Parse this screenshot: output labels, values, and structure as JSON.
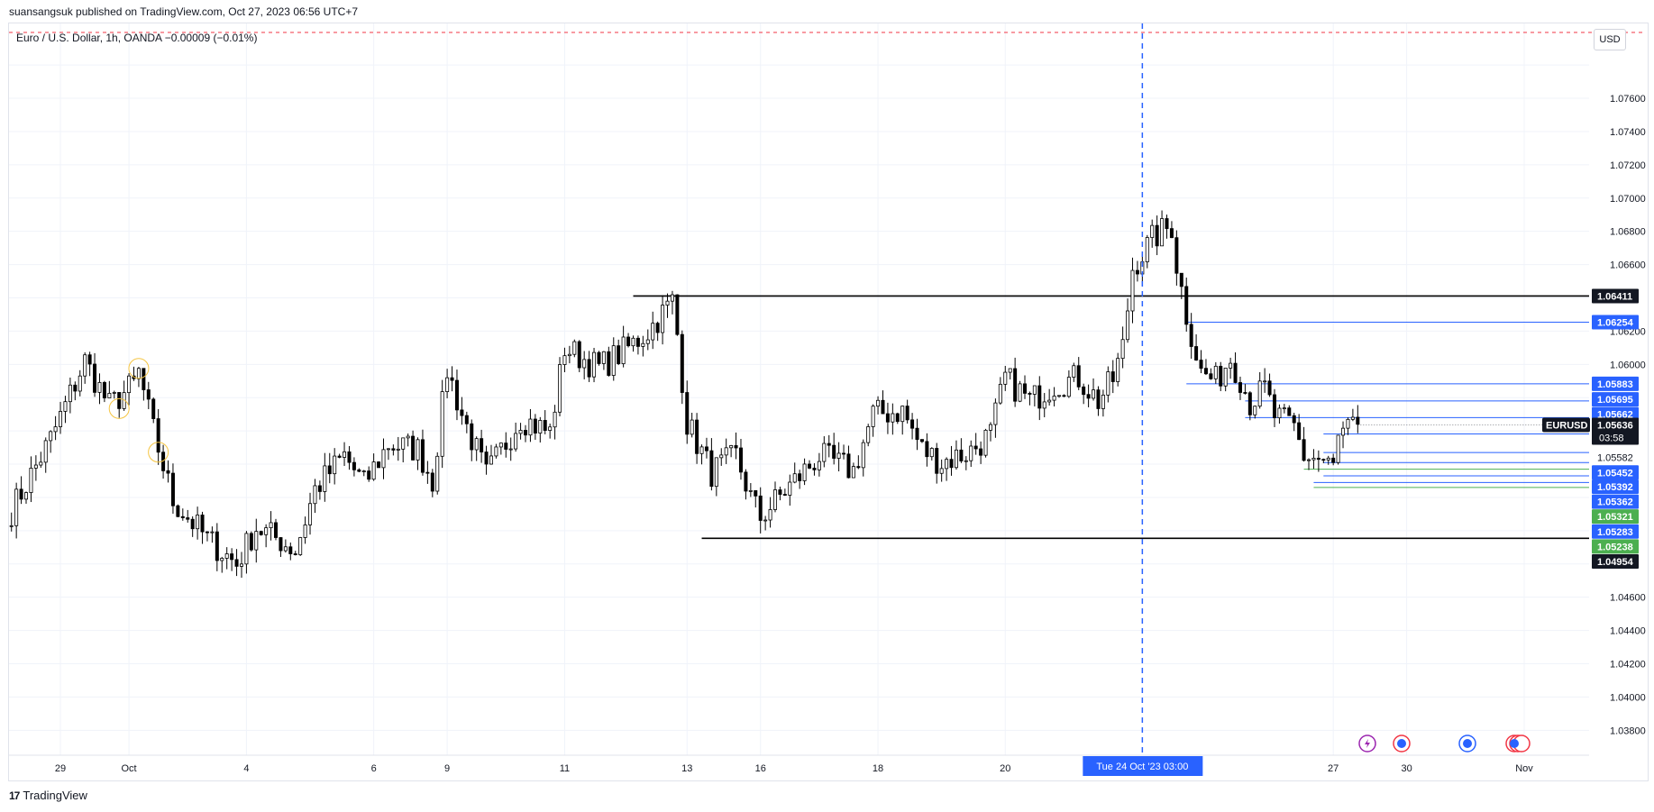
{
  "header": {
    "published": "suansangsuk published on TradingView.com, Oct 27, 2023 06:56 UTC+7"
  },
  "legend": {
    "symbol_line": "Euro / U.S. Dollar, 1h, OANDA  −0.00009 (−0.01%)"
  },
  "currency_button": "USD",
  "footer": {
    "logo_mark": "17",
    "brand": "TradingView"
  },
  "chart_data": {
    "type": "candlestick",
    "symbol": "EURUSD",
    "last_price": "1.05636",
    "countdown": "03:58",
    "y_ticks": [
      "1.07600",
      "1.07400",
      "1.07200",
      "1.07000",
      "1.06800",
      "1.06600",
      "1.06200",
      "1.06000",
      "1.04600",
      "1.04400",
      "1.04200",
      "1.04000",
      "1.03800"
    ],
    "y_range": [
      1.0365,
      1.0805
    ],
    "x_ticks": [
      {
        "label": "29",
        "bar": 10
      },
      {
        "label": "Oct",
        "bar": 24
      },
      {
        "label": "4",
        "bar": 48
      },
      {
        "label": "6",
        "bar": 74
      },
      {
        "label": "9",
        "bar": 89
      },
      {
        "label": "11",
        "bar": 113
      },
      {
        "label": "13",
        "bar": 138
      },
      {
        "label": "16",
        "bar": 153
      },
      {
        "label": "18",
        "bar": 177
      },
      {
        "label": "20",
        "bar": 203
      },
      {
        "label": "27",
        "bar": 270
      },
      {
        "label": "30",
        "bar": 285
      },
      {
        "label": "Nov",
        "bar": 309
      }
    ],
    "crosshair": {
      "label": "Tue 24 Oct '23   03:00",
      "bar": 231
    },
    "total_slots": 313,
    "series_path": [
      [
        0,
        1.0512
      ],
      [
        8,
        1.0555
      ],
      [
        15,
        1.0602
      ],
      [
        20,
        1.0575
      ],
      [
        25,
        1.0588
      ],
      [
        26,
        1.0595
      ],
      [
        29,
        1.056
      ],
      [
        33,
        1.0518
      ],
      [
        40,
        1.0495
      ],
      [
        46,
        1.048
      ],
      [
        50,
        1.0502
      ],
      [
        55,
        1.0494
      ],
      [
        58,
        1.0488
      ],
      [
        62,
        1.0525
      ],
      [
        68,
        1.0545
      ],
      [
        72,
        1.0528
      ],
      [
        77,
        1.0552
      ],
      [
        83,
        1.0549
      ],
      [
        86,
        1.053
      ],
      [
        89,
        1.0597
      ],
      [
        92,
        1.057
      ],
      [
        97,
        1.0533
      ],
      [
        104,
        1.0568
      ],
      [
        110,
        1.0559
      ],
      [
        113,
        1.061
      ],
      [
        120,
        1.0598
      ],
      [
        126,
        1.061
      ],
      [
        130,
        1.062
      ],
      [
        135,
        1.0638
      ],
      [
        136,
        1.0618
      ],
      [
        138,
        1.0565
      ],
      [
        143,
        1.0535
      ],
      [
        148,
        1.0545
      ],
      [
        151,
        1.052
      ],
      [
        153,
        1.0508
      ],
      [
        158,
        1.0524
      ],
      [
        165,
        1.0545
      ],
      [
        172,
        1.0536
      ],
      [
        176,
        1.057
      ],
      [
        182,
        1.0572
      ],
      [
        186,
        1.0549
      ],
      [
        190,
        1.0541
      ],
      [
        196,
        1.0548
      ],
      [
        200,
        1.0558
      ],
      [
        203,
        1.0592
      ],
      [
        208,
        1.0578
      ],
      [
        213,
        1.0588
      ],
      [
        218,
        1.0592
      ],
      [
        222,
        1.0578
      ],
      [
        225,
        1.0591
      ],
      [
        227,
        1.061
      ],
      [
        229,
        1.0658
      ],
      [
        233,
        1.0675
      ],
      [
        235,
        1.068
      ],
      [
        237,
        1.0683
      ],
      [
        238,
        1.066
      ],
      [
        240,
        1.063
      ],
      [
        243,
        1.0595
      ],
      [
        246,
        1.059
      ],
      [
        249,
        1.0604
      ],
      [
        251,
        1.0592
      ],
      [
        253,
        1.0577
      ],
      [
        256,
        1.0585
      ],
      [
        258,
        1.0569
      ],
      [
        262,
        1.0562
      ],
      [
        264,
        1.0545
      ],
      [
        267,
        1.0543
      ],
      [
        270,
        1.0538
      ],
      [
        271,
        1.0555
      ],
      [
        273,
        1.056
      ],
      [
        275,
        1.0564
      ]
    ],
    "horizontal_lines": [
      {
        "label": "1.06411",
        "value": 1.06411,
        "from": 127,
        "color": "#000000",
        "tag": "#131722"
      },
      {
        "label": "1.06254",
        "value": 1.06254,
        "from": 240,
        "color": "#2962ff",
        "tag": "#2962ff"
      },
      {
        "label": "1.05883",
        "value": 1.05883,
        "from": 240,
        "color": "#2962ff",
        "tag": "#2962ff"
      },
      {
        "label": "1.05695",
        "value": 1.0578,
        "from": 252,
        "color": "#2962ff",
        "tag": "#2962ff"
      },
      {
        "label": "1.05662",
        "value": 1.0568,
        "from": 252,
        "color": "#2962ff",
        "tag": "#2962ff"
      },
      {
        "label": "1.05582",
        "value": 1.05582,
        "from": 268,
        "color": "#2962ff",
        "tag": "#ffffff"
      },
      {
        "label": "1.05452",
        "value": 1.0547,
        "from": 268,
        "color": "#2962ff",
        "tag": "#2962ff"
      },
      {
        "label": "1.05392",
        "value": 1.0541,
        "from": 268,
        "color": "#2962ff",
        "tag": "#2962ff"
      },
      {
        "label": "1.05362",
        "value": 1.0533,
        "from": 268,
        "color": "#2962ff",
        "tag": "#2962ff"
      },
      {
        "label": "1.05321",
        "value": 1.0537,
        "from": 264,
        "color": "#4caf50",
        "tag": "#4caf50"
      },
      {
        "label": "1.05283",
        "value": 1.0529,
        "from": 266,
        "color": "#2962ff",
        "tag": "#2962ff"
      },
      {
        "label": "1.05238",
        "value": 1.0526,
        "from": 266,
        "color": "#4caf50",
        "tag": "#4caf50"
      },
      {
        "label": "1.04954",
        "value": 1.04954,
        "from": 141,
        "color": "#000000",
        "tag": "#131722"
      }
    ],
    "tag_positions": [
      {
        "label": "1.06411",
        "y": 1.06411
      },
      {
        "label": "1.06254",
        "y": 1.06254
      },
      {
        "label": "1.05883",
        "y": 1.05883
      },
      {
        "label": "1.05695",
        "y": 1.0579
      },
      {
        "label": "1.05662",
        "y": 1.057
      },
      {
        "label": "1.05582",
        "y": 1.0544
      },
      {
        "label": "1.05452",
        "y": 1.0535
      },
      {
        "label": "1.05392",
        "y": 1.05265
      },
      {
        "label": "1.05362",
        "y": 1.05175
      },
      {
        "label": "1.05321",
        "y": 1.05085
      },
      {
        "label": "1.05283",
        "y": 1.04995
      },
      {
        "label": "1.05238",
        "y": 1.04905
      },
      {
        "label": "1.04954",
        "y": 1.04815
      }
    ],
    "marker_circles": [
      22,
      26,
      30
    ],
    "top_dashed_line": {
      "color": "#f23645"
    },
    "event_icons": [
      "lightning-icon",
      "us-flag-icon",
      "globe-icon",
      "globe-stack-icon"
    ]
  }
}
